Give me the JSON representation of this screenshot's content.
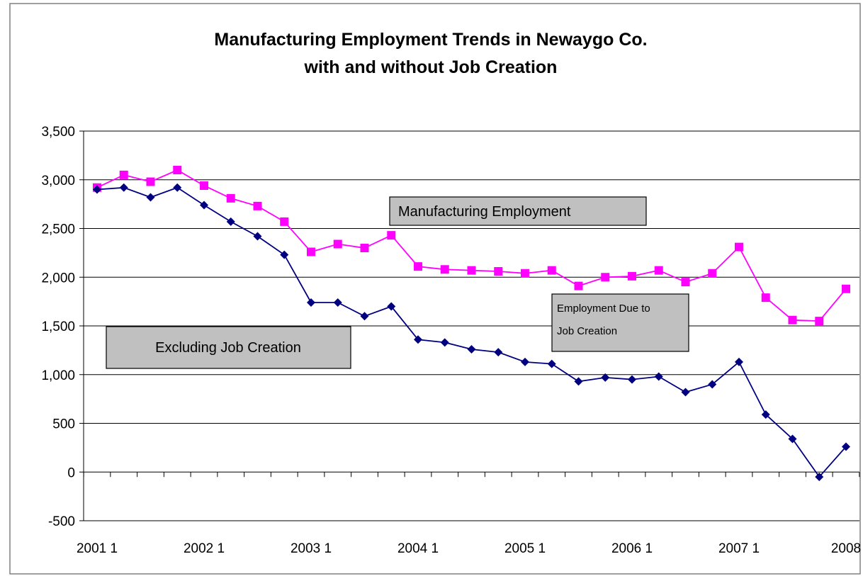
{
  "chart_data": {
    "type": "line",
    "title": "Manufacturing Employment Trends in Newaygo Co.",
    "subtitle": "with and without Job Creation",
    "xlabel": "",
    "ylabel": "",
    "ylim": [
      -500,
      3500
    ],
    "y_ticks": [
      "3,500",
      "3,000",
      "2,500",
      "2,000",
      "1,500",
      "1,000",
      "500",
      "0",
      "-500"
    ],
    "y_tick_values": [
      3500,
      3000,
      2500,
      2000,
      1500,
      1000,
      500,
      0,
      -500
    ],
    "x_tick_labels": [
      {
        "label": "2001 1",
        "index": 0
      },
      {
        "label": "2002 1",
        "index": 4
      },
      {
        "label": "2003 1",
        "index": 8
      },
      {
        "label": "2004 1",
        "index": 12
      },
      {
        "label": "2005 1",
        "index": 16
      },
      {
        "label": "2006 1",
        "index": 20
      },
      {
        "label": "2007 1",
        "index": 24
      },
      {
        "label": "2008",
        "index": 28
      }
    ],
    "grid": "horizontal",
    "series": [
      {
        "color": "#ff00ff",
        "marker": "square",
        "values": [
          2920,
          3050,
          2980,
          3100,
          2940,
          2810,
          2730,
          2570,
          2260,
          2340,
          2300,
          2430,
          2110,
          2080,
          2070,
          2060,
          2040,
          2070,
          1910,
          2000,
          2010,
          2070,
          1950,
          2040,
          2310,
          1790,
          1560,
          1550,
          1880
        ]
      },
      {
        "color": "#000080",
        "marker": "diamond",
        "values": [
          2900,
          2920,
          2820,
          2920,
          2740,
          2570,
          2420,
          2230,
          1740,
          1740,
          1600,
          1700,
          1360,
          1330,
          1260,
          1230,
          1130,
          1110,
          930,
          970,
          950,
          980,
          820,
          900,
          1130,
          590,
          340,
          -50,
          260
        ]
      }
    ],
    "annotations": [
      {
        "text": "Manufacturing Employment"
      },
      {
        "text_line1": "Employment Due to",
        "text_line2": "Job Creation"
      },
      {
        "text": "Excluding Job Creation"
      }
    ]
  }
}
